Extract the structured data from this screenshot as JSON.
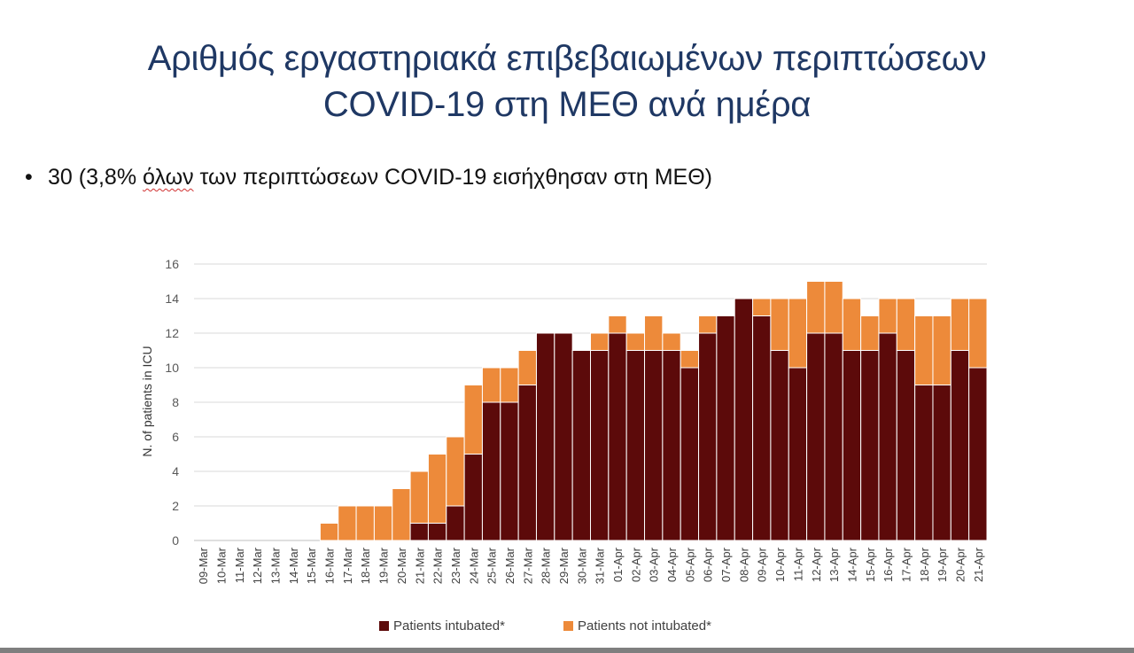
{
  "slide": {
    "title_line1": "Αριθμός εργαστηριακά επιβεβαιωμένων περιπτώσεων",
    "title_line2": "COVID-19 στη ΜΕΘ ανά ημέρα",
    "bullet_symbol": "•",
    "bullet_prefix": "30 (3,8% ",
    "bullet_underlined": "όλων",
    "bullet_suffix": " των περιπτώσεων COVID-19 εισήχθησαν στη ΜΕΘ)"
  },
  "chart_data": {
    "type": "bar",
    "stacked": true,
    "title": "",
    "xlabel": "",
    "ylabel": "N. of patients in ICU",
    "ylim": [
      0,
      16
    ],
    "yticks": [
      0,
      2,
      4,
      6,
      8,
      10,
      12,
      14,
      16
    ],
    "grid": true,
    "legend_position": "bottom",
    "categories": [
      "09-Mar",
      "10-Mar",
      "11-Mar",
      "12-Mar",
      "13-Mar",
      "14-Mar",
      "15-Mar",
      "16-Mar",
      "17-Mar",
      "18-Mar",
      "19-Mar",
      "20-Mar",
      "21-Mar",
      "22-Mar",
      "23-Mar",
      "24-Mar",
      "25-Mar",
      "26-Mar",
      "27-Mar",
      "28-Mar",
      "29-Mar",
      "30-Mar",
      "31-Mar",
      "01-Apr",
      "02-Apr",
      "03-Apr",
      "04-Apr",
      "05-Apr",
      "06-Apr",
      "07-Apr",
      "08-Apr",
      "09-Apr",
      "10-Apr",
      "11-Apr",
      "12-Apr",
      "13-Apr",
      "14-Apr",
      "15-Apr",
      "16-Apr",
      "17-Apr",
      "18-Apr",
      "19-Apr",
      "20-Apr",
      "21-Apr"
    ],
    "series": [
      {
        "name": "Patients intubated*",
        "color": "#5c0a0a",
        "values": [
          0,
          0,
          0,
          0,
          0,
          0,
          0,
          0,
          0,
          0,
          0,
          0,
          1,
          1,
          2,
          5,
          8,
          8,
          9,
          12,
          12,
          11,
          11,
          12,
          11,
          11,
          11,
          10,
          12,
          13,
          14,
          13,
          11,
          10,
          12,
          12,
          11,
          11,
          12,
          11,
          9,
          9,
          11,
          10
        ]
      },
      {
        "name": "Patients not intubated*",
        "color": "#ed8a3a",
        "values": [
          0,
          0,
          0,
          0,
          0,
          0,
          0,
          1,
          2,
          2,
          2,
          3,
          3,
          4,
          4,
          4,
          2,
          2,
          2,
          0,
          0,
          0,
          1,
          1,
          1,
          2,
          1,
          1,
          1,
          0,
          0,
          1,
          3,
          4,
          3,
          3,
          3,
          2,
          2,
          3,
          4,
          4,
          3,
          4
        ]
      }
    ]
  }
}
